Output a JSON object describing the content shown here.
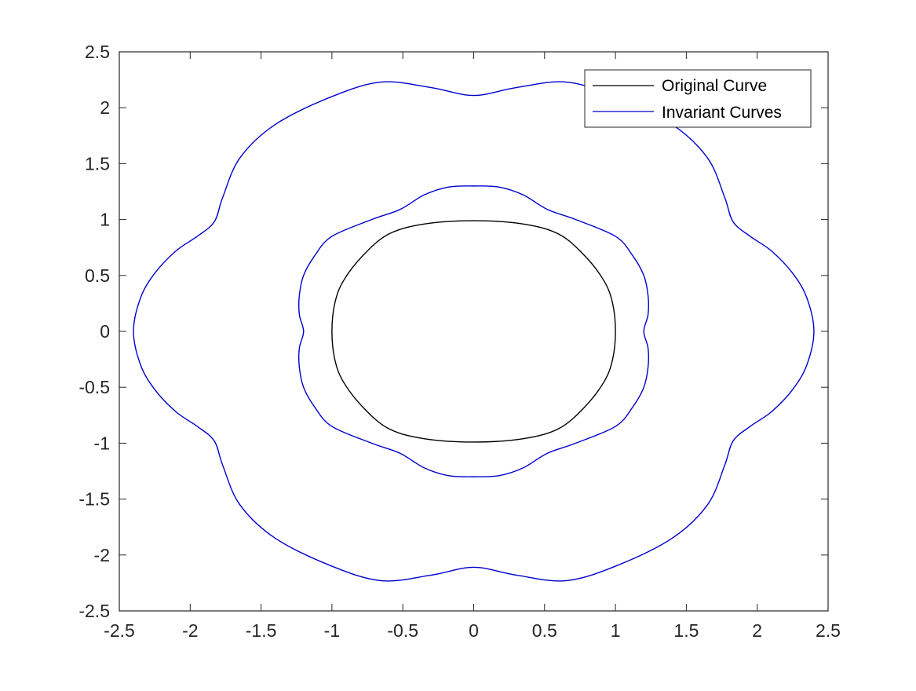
{
  "chart_data": {
    "type": "line",
    "title": "",
    "xlabel": "",
    "ylabel": "",
    "xlim": [
      -2.5,
      2.5
    ],
    "ylim": [
      -2.5,
      2.5
    ],
    "x_ticks": [
      -2.5,
      -2,
      -1.5,
      -1,
      -0.5,
      0,
      0.5,
      1,
      1.5,
      2,
      2.5
    ],
    "y_ticks": [
      -2.5,
      -2,
      -1.5,
      -1,
      -0.5,
      0,
      0.5,
      1,
      1.5,
      2,
      2.5
    ],
    "x_tick_labels": [
      "-2.5",
      "-2",
      "-1.5",
      "-1",
      "-0.5",
      "0",
      "0.5",
      "1",
      "1.5",
      "2",
      "2.5"
    ],
    "y_tick_labels": [
      "-2.5",
      "-2",
      "-1.5",
      "-1",
      "-0.5",
      "0",
      "0.5",
      "1",
      "1.5",
      "2",
      "2.5"
    ],
    "grid": false,
    "legend_position": "top-right",
    "legend": [
      "Original Curve",
      "Invariant Curves"
    ],
    "series": [
      {
        "name": "Original Curve",
        "color": "#000000",
        "closed": true,
        "points": [
          [
            1.0,
            0.0
          ],
          [
            0.98,
            0.25
          ],
          [
            0.92,
            0.45
          ],
          [
            0.78,
            0.68
          ],
          [
            0.6,
            0.87
          ],
          [
            0.35,
            0.96
          ],
          [
            0.0,
            0.99
          ],
          [
            -0.35,
            0.96
          ],
          [
            -0.6,
            0.87
          ],
          [
            -0.78,
            0.68
          ],
          [
            -0.92,
            0.45
          ],
          [
            -0.98,
            0.25
          ],
          [
            -1.0,
            0.0
          ],
          [
            -0.98,
            -0.25
          ],
          [
            -0.92,
            -0.45
          ],
          [
            -0.78,
            -0.68
          ],
          [
            -0.6,
            -0.87
          ],
          [
            -0.35,
            -0.96
          ],
          [
            0.0,
            -0.99
          ],
          [
            0.35,
            -0.96
          ],
          [
            0.6,
            -0.87
          ],
          [
            0.78,
            -0.68
          ],
          [
            0.92,
            -0.45
          ],
          [
            0.98,
            -0.25
          ]
        ]
      },
      {
        "name": "Invariant Curves",
        "color": "#0000cc",
        "closed": true,
        "points": [
          [
            1.2,
            0.0
          ],
          [
            1.23,
            0.15
          ],
          [
            1.23,
            0.32
          ],
          [
            1.2,
            0.5
          ],
          [
            1.12,
            0.68
          ],
          [
            1.0,
            0.85
          ],
          [
            0.72,
            1.0
          ],
          [
            0.52,
            1.09
          ],
          [
            0.35,
            1.22
          ],
          [
            0.18,
            1.29
          ],
          [
            0.0,
            1.3
          ],
          [
            -0.18,
            1.29
          ],
          [
            -0.35,
            1.22
          ],
          [
            -0.52,
            1.09
          ],
          [
            -0.72,
            1.0
          ],
          [
            -1.0,
            0.85
          ],
          [
            -1.12,
            0.68
          ],
          [
            -1.2,
            0.5
          ],
          [
            -1.23,
            0.32
          ],
          [
            -1.23,
            0.15
          ],
          [
            -1.2,
            0.0
          ],
          [
            -1.23,
            -0.15
          ],
          [
            -1.23,
            -0.32
          ],
          [
            -1.2,
            -0.5
          ],
          [
            -1.12,
            -0.68
          ],
          [
            -1.0,
            -0.85
          ],
          [
            -0.72,
            -1.0
          ],
          [
            -0.52,
            -1.09
          ],
          [
            -0.35,
            -1.22
          ],
          [
            -0.18,
            -1.29
          ],
          [
            0.0,
            -1.3
          ],
          [
            0.18,
            -1.29
          ],
          [
            0.35,
            -1.22
          ],
          [
            0.52,
            -1.09
          ],
          [
            0.72,
            -1.0
          ],
          [
            1.0,
            -0.85
          ],
          [
            1.12,
            -0.68
          ],
          [
            1.2,
            -0.5
          ],
          [
            1.23,
            -0.32
          ],
          [
            1.23,
            -0.15
          ]
        ]
      },
      {
        "name": "",
        "color": "#0000cc",
        "closed": true,
        "points": [
          [
            2.4,
            0.0
          ],
          [
            2.35,
            0.3
          ],
          [
            2.25,
            0.52
          ],
          [
            2.1,
            0.72
          ],
          [
            1.95,
            0.85
          ],
          [
            1.83,
            0.98
          ],
          [
            1.77,
            1.2
          ],
          [
            1.65,
            1.55
          ],
          [
            1.4,
            1.85
          ],
          [
            1.0,
            2.1
          ],
          [
            0.65,
            2.23
          ],
          [
            0.3,
            2.18
          ],
          [
            0.0,
            2.11
          ],
          [
            -0.3,
            2.18
          ],
          [
            -0.65,
            2.23
          ],
          [
            -1.0,
            2.1
          ],
          [
            -1.4,
            1.85
          ],
          [
            -1.65,
            1.55
          ],
          [
            -1.77,
            1.2
          ],
          [
            -1.83,
            0.98
          ],
          [
            -1.95,
            0.85
          ],
          [
            -2.1,
            0.72
          ],
          [
            -2.25,
            0.52
          ],
          [
            -2.35,
            0.3
          ],
          [
            -2.4,
            0.0
          ],
          [
            -2.35,
            -0.3
          ],
          [
            -2.25,
            -0.52
          ],
          [
            -2.1,
            -0.72
          ],
          [
            -1.95,
            -0.85
          ],
          [
            -1.83,
            -0.98
          ],
          [
            -1.77,
            -1.2
          ],
          [
            -1.65,
            -1.55
          ],
          [
            -1.4,
            -1.85
          ],
          [
            -1.0,
            -2.1
          ],
          [
            -0.65,
            -2.23
          ],
          [
            -0.3,
            -2.18
          ],
          [
            0.0,
            -2.11
          ],
          [
            0.3,
            -2.18
          ],
          [
            0.65,
            -2.23
          ],
          [
            1.0,
            -2.1
          ],
          [
            1.4,
            -1.85
          ],
          [
            1.65,
            -1.55
          ],
          [
            1.77,
            -1.2
          ],
          [
            1.83,
            -0.98
          ],
          [
            1.95,
            -0.85
          ],
          [
            2.1,
            -0.72
          ],
          [
            2.25,
            -0.52
          ],
          [
            2.35,
            -0.3
          ]
        ]
      }
    ]
  }
}
